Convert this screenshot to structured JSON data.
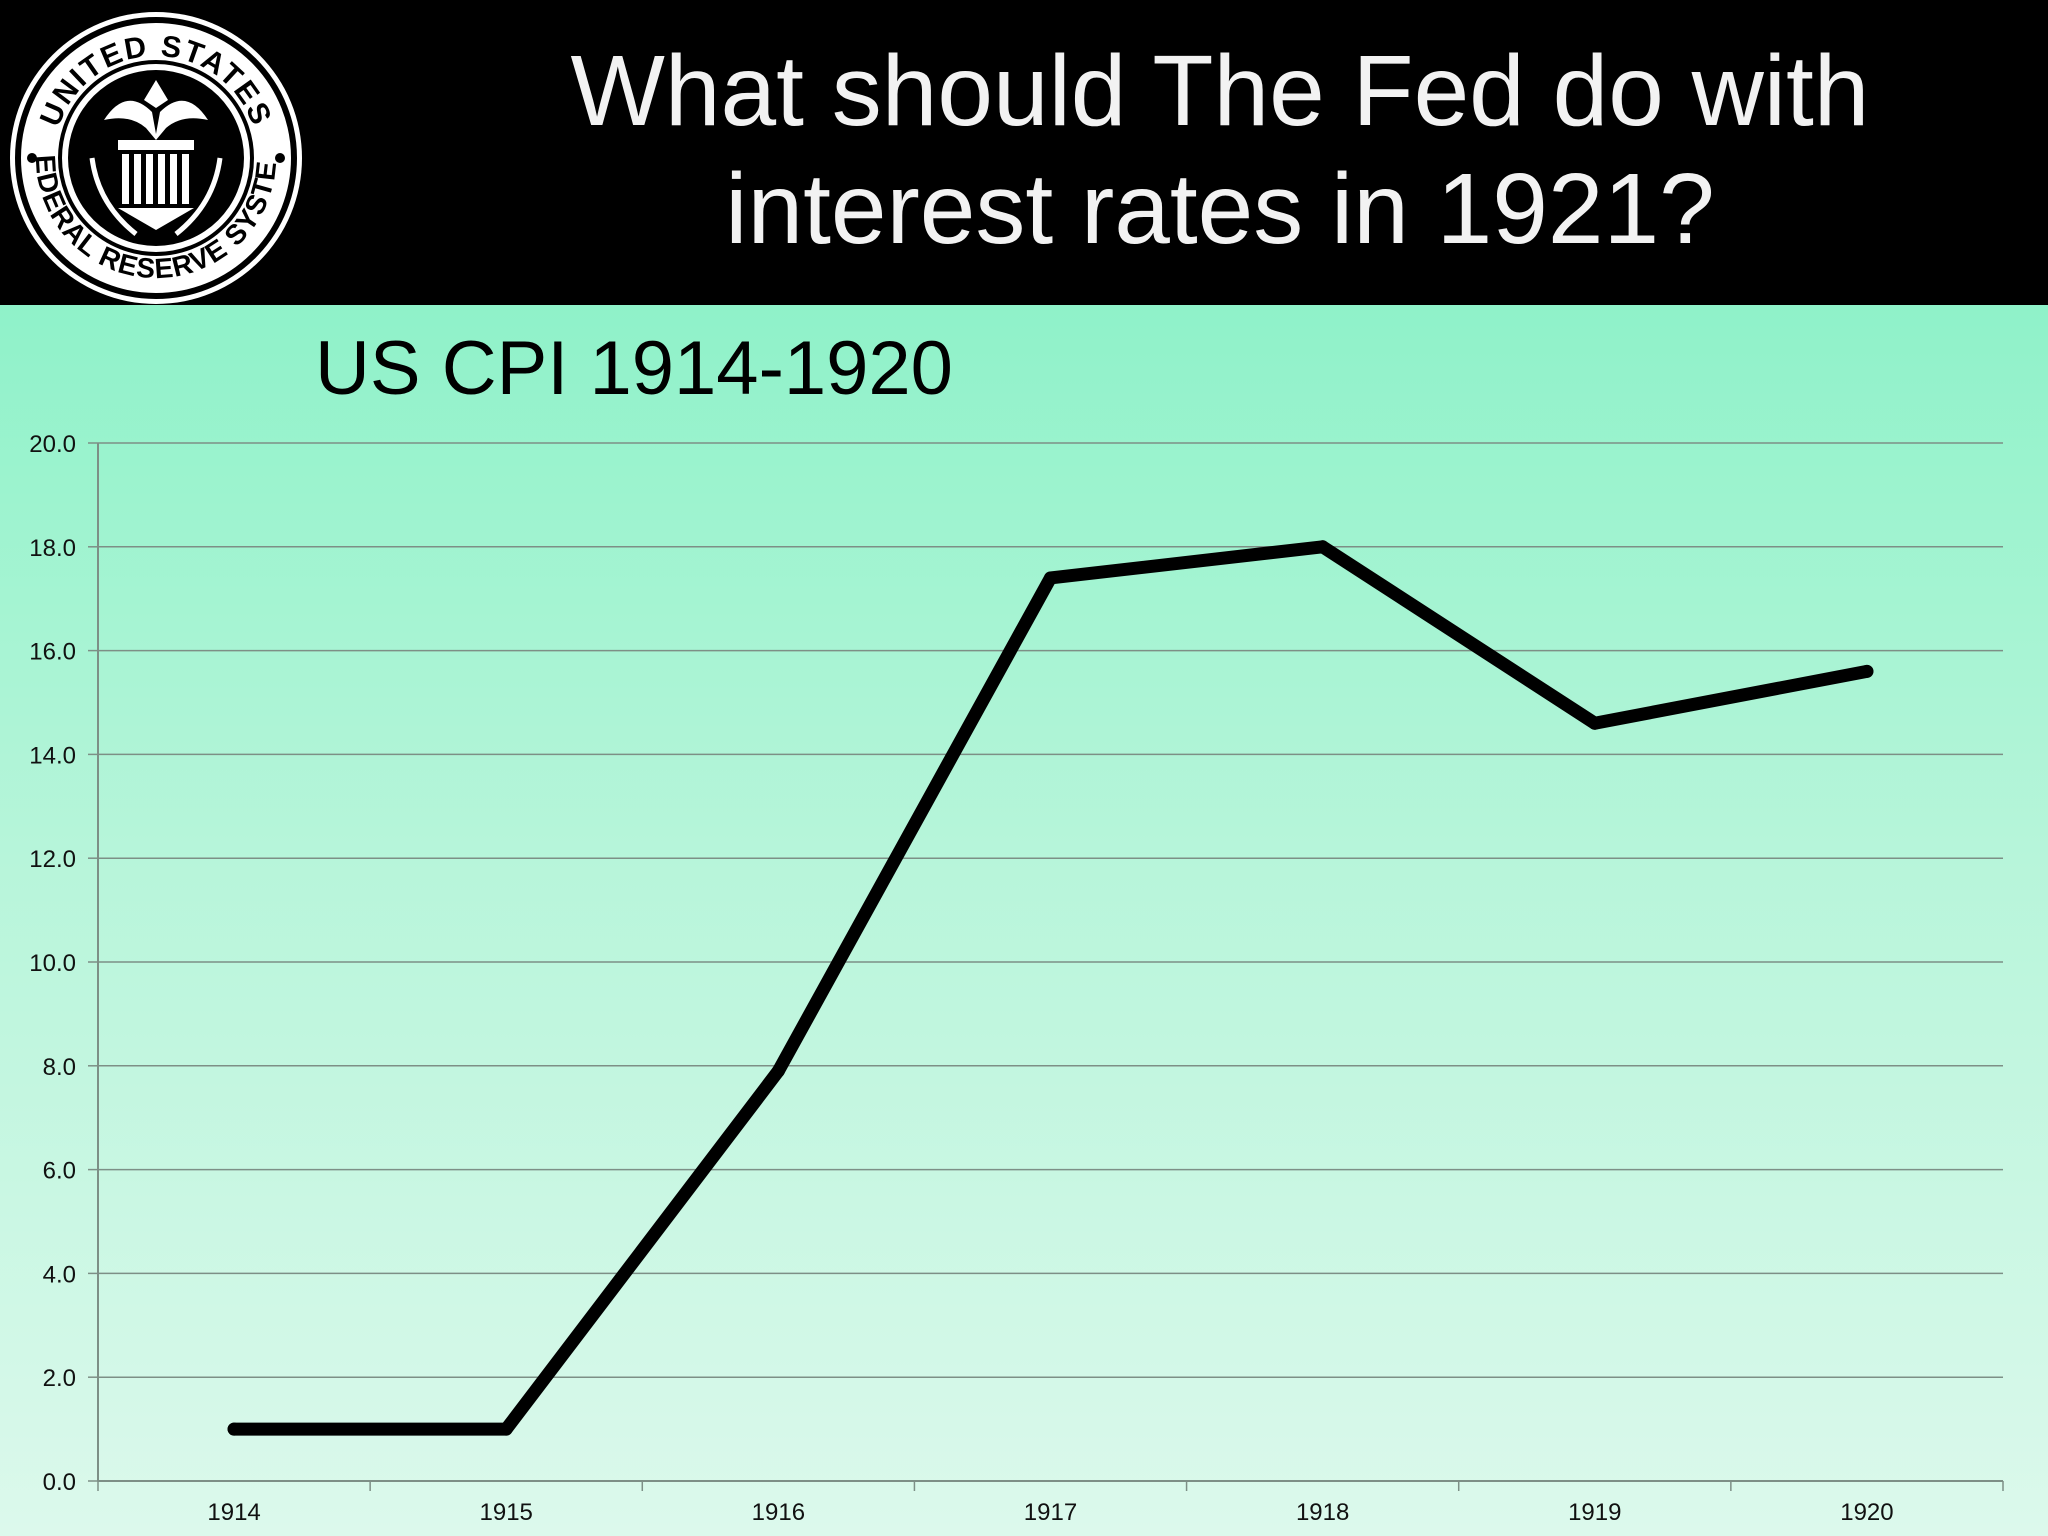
{
  "slide": {
    "title_line1": "What should The Fed do with",
    "title_line2": "interest rates in 1921?"
  },
  "seal": {
    "top_text": "UNITED STATES",
    "bottom_text": "FEDERAL RESERVE SYSTEM"
  },
  "colors": {
    "header_bg": "#000000",
    "title_text": "#f2f2f2",
    "panel_top": "#8ff2c9",
    "panel_bottom": "#dcf9ec",
    "line": "#000000",
    "grid": "#7d8f86"
  },
  "chart_data": {
    "type": "line",
    "title": "US CPI 1914-1920",
    "xlabel": "",
    "ylabel": "",
    "categories": [
      "1914",
      "1915",
      "1916",
      "1917",
      "1918",
      "1919",
      "1920"
    ],
    "series": [
      {
        "values": [
          1.0,
          1.0,
          7.9,
          17.4,
          18.0,
          14.6,
          15.6
        ]
      }
    ],
    "ylim": [
      0,
      20
    ],
    "yticks": [
      "0.0",
      "2.0",
      "4.0",
      "6.0",
      "8.0",
      "10.0",
      "12.0",
      "14.0",
      "16.0",
      "18.0",
      "20.0"
    ],
    "grid": true,
    "legend": "none"
  }
}
